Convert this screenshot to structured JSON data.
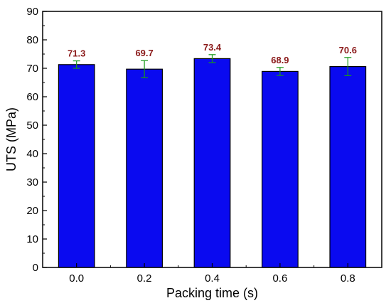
{
  "chart_data": {
    "type": "bar",
    "title": "",
    "xlabel": "Packing time (s)",
    "ylabel": "UTS (MPa)",
    "categories": [
      "0.0",
      "0.2",
      "0.4",
      "0.6",
      "0.8"
    ],
    "values": [
      71.3,
      69.7,
      73.4,
      68.9,
      70.6
    ],
    "value_labels": [
      "71.3",
      "69.7",
      "73.4",
      "68.9",
      "70.6"
    ],
    "error": [
      1.3,
      3.0,
      1.4,
      1.4,
      3.2
    ],
    "ylim": [
      0,
      90
    ],
    "yticks": [
      0,
      10,
      20,
      30,
      40,
      50,
      60,
      70,
      80,
      90
    ],
    "ytick_labels": [
      "0",
      "10",
      "20",
      "30",
      "40",
      "50",
      "60",
      "70",
      "80",
      "90"
    ],
    "grid": false,
    "legend": "none",
    "colors": {
      "bar_fill": "#0a0af0",
      "bar_stroke": "#000000",
      "error_bar": "#1a9a1a",
      "value_label": "#8b1a1a",
      "axis": "#000000"
    }
  }
}
